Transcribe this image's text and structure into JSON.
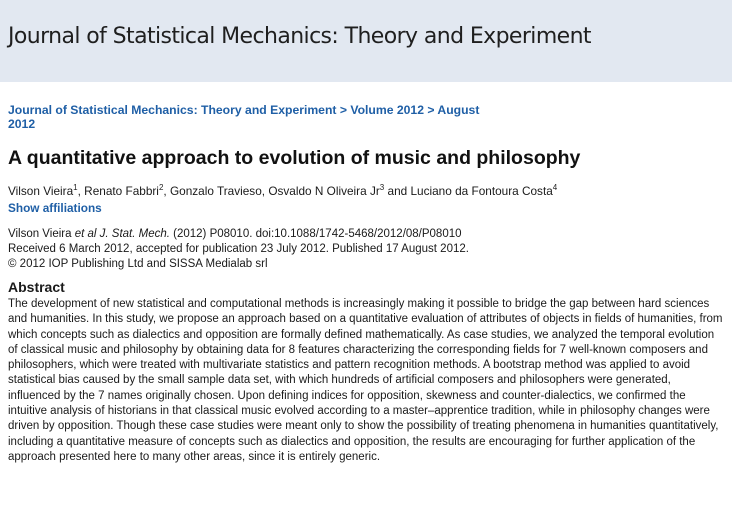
{
  "header": {
    "journal_title": "Journal of Statistical Mechanics: Theory and Experiment"
  },
  "breadcrumb": {
    "journal": "Journal of Statistical Mechanics: Theory and Experiment",
    "sep1": " > ",
    "volume": "Volume 2012",
    "sep2": " > ",
    "issue": "August 2012"
  },
  "article": {
    "title": "A quantitative approach to evolution of music and philosophy",
    "authors": [
      {
        "name": "Vilson Vieira",
        "sup": "1",
        "after": ", "
      },
      {
        "name": "Renato Fabbri",
        "sup": "2",
        "after": ", "
      },
      {
        "name": "Gonzalo Travieso",
        "sup": "",
        "after": ", "
      },
      {
        "name": "Osvaldo N Oliveira Jr",
        "sup": "3",
        "after": " and "
      },
      {
        "name": "Luciano da Fontoura Costa",
        "sup": "4",
        "after": ""
      }
    ],
    "show_affiliations": "Show affiliations",
    "citation_authors": "Vilson Vieira ",
    "citation_etal": "et al J. Stat. Mech.",
    "citation_rest": " (2012) P08010. doi:10.1088/1742-5468/2012/08/P08010",
    "received": "Received 6 March 2012, accepted for publication 23 July 2012. Published 17 August 2012.",
    "copyright": "© 2012 IOP Publishing Ltd and SISSA Medialab srl",
    "abstract_heading": "Abstract",
    "abstract_text": "The development of new statistical and computational methods is increasingly making it possible to bridge the gap between hard sciences and humanities. In this study, we propose an approach based on a quantitative evaluation of attributes of objects in fields of humanities, from which concepts such as dialectics and opposition are formally defined mathematically. As case studies, we analyzed the temporal evolution of classical music and philosophy by obtaining data for 8 features characterizing the corresponding fields for 7 well-known composers and philosophers, which were treated with multivariate statistics and pattern recognition methods. A bootstrap method was applied to avoid statistical bias caused by the small sample data set, with which hundreds of artificial composers and philosophers were generated, influenced by the 7 names originally chosen. Upon defining indices for opposition, skewness and counter-dialectics, we confirmed the intuitive analysis of historians in that classical music evolved according to a master–apprentice tradition, while in philosophy changes were driven by opposition. Though these case studies were meant only to show the possibility of treating phenomena in humanities quantitatively, including a quantitative measure of concepts such as dialectics and opposition, the results are encouraging for further application of the approach presented here to many other areas, since it is entirely generic."
  }
}
